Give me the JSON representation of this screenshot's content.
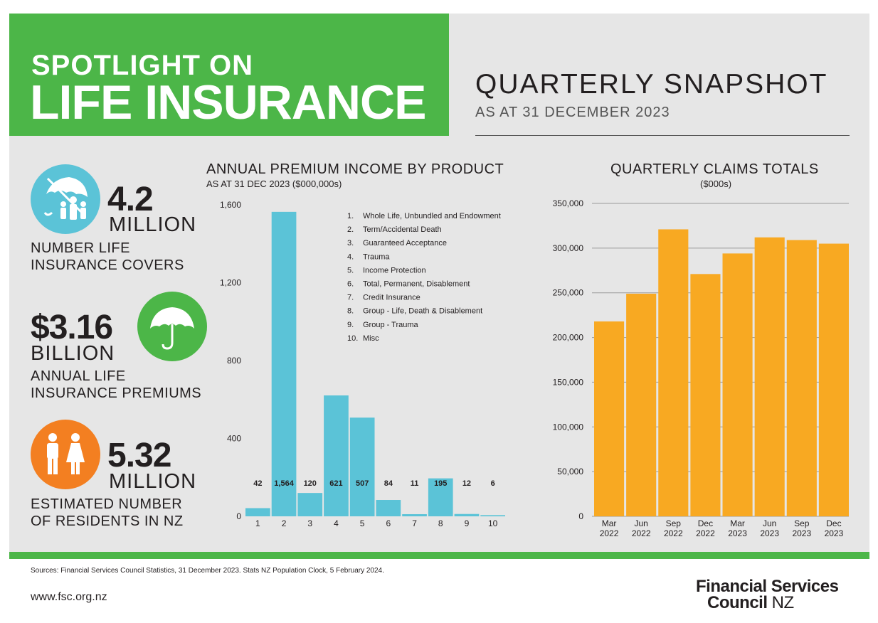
{
  "header": {
    "line1": "SPOTLIGHT ON",
    "line2": "LIFE INSURANCE",
    "snapshot_title": "QUARTERLY SNAPSHOT",
    "snapshot_subtitle": "AS AT 31 DECEMBER 2023"
  },
  "stats": [
    {
      "number": "4.2",
      "unit": "MILLION",
      "desc1": "NUMBER LIFE",
      "desc2": "INSURANCE COVERS",
      "icon": "family-umbrella-icon",
      "color": "#5bc3d7"
    },
    {
      "number": "$3.16",
      "unit": "BILLION",
      "desc1": "ANNUAL LIFE",
      "desc2": "INSURANCE PREMIUMS",
      "icon": "umbrella-icon",
      "color": "#4cb648"
    },
    {
      "number": "5.32",
      "unit": "MILLION",
      "desc1": "ESTIMATED NUMBER",
      "desc2": "OF RESIDENTS IN NZ",
      "icon": "people-icon",
      "color": "#f37f21"
    }
  ],
  "colors": {
    "brand_green": "#4cb648",
    "premium_bar": "#5bc3d7",
    "claims_bar": "#f8a922",
    "panel_bg": "#e6e6e6"
  },
  "chart_data": [
    {
      "type": "bar",
      "title": "ANNUAL PREMIUM INCOME BY PRODUCT",
      "subtitle": "AS AT 31 DEC 2023 ($000,000s)",
      "categories": [
        "1",
        "2",
        "3",
        "4",
        "5",
        "6",
        "7",
        "8",
        "9",
        "10"
      ],
      "values": [
        42,
        1564,
        120,
        621,
        507,
        84,
        11,
        195,
        12,
        6
      ],
      "value_labels": [
        "42",
        "1,564",
        "120",
        "621",
        "507",
        "84",
        "11",
        "195",
        "12",
        "6"
      ],
      "ylim": [
        0,
        1600
      ],
      "yticks": [
        0,
        400,
        800,
        1200,
        1600
      ],
      "ytick_labels": [
        "0",
        "400",
        "800",
        "1,200",
        "1,600"
      ],
      "legend": [
        "Whole Life, Unbundled and Endowment",
        "Term/Accidental Death",
        "Guaranteed Acceptance",
        "Trauma",
        "Income Protection",
        "Total, Permanent, Disablement",
        "Credit Insurance",
        "Group - Life, Death & Disablement",
        "Group - Trauma",
        "Misc"
      ],
      "legend_position": "top-right",
      "grid": false
    },
    {
      "type": "bar",
      "title": "QUARTERLY CLAIMS TOTALS",
      "subtitle": "($000s)",
      "categories": [
        [
          "Mar",
          "2022"
        ],
        [
          "Jun",
          "2022"
        ],
        [
          "Sep",
          "2022"
        ],
        [
          "Dec",
          "2022"
        ],
        [
          "Mar",
          "2023"
        ],
        [
          "Jun",
          "2023"
        ],
        [
          "Sep",
          "2023"
        ],
        [
          "Dec",
          "2023"
        ]
      ],
      "values": [
        218000,
        249000,
        321000,
        271000,
        294000,
        312000,
        309000,
        305000
      ],
      "ylim": [
        0,
        350000
      ],
      "yticks": [
        0,
        50000,
        100000,
        150000,
        200000,
        250000,
        300000,
        350000
      ],
      "ytick_labels": [
        "0",
        "50,000",
        "100,000",
        "150,000",
        "200,000",
        "250,000",
        "300,000",
        "350,000"
      ],
      "grid": true
    }
  ],
  "footer": {
    "sources": "Sources: Financial Services Council Statistics, 31 December 2023. Stats NZ Population Clock, 5 February 2024.",
    "url": "www.fsc.org.nz",
    "logo_line1": "Financial Services",
    "logo_line2a": "Council",
    "logo_line2b": "NZ"
  }
}
